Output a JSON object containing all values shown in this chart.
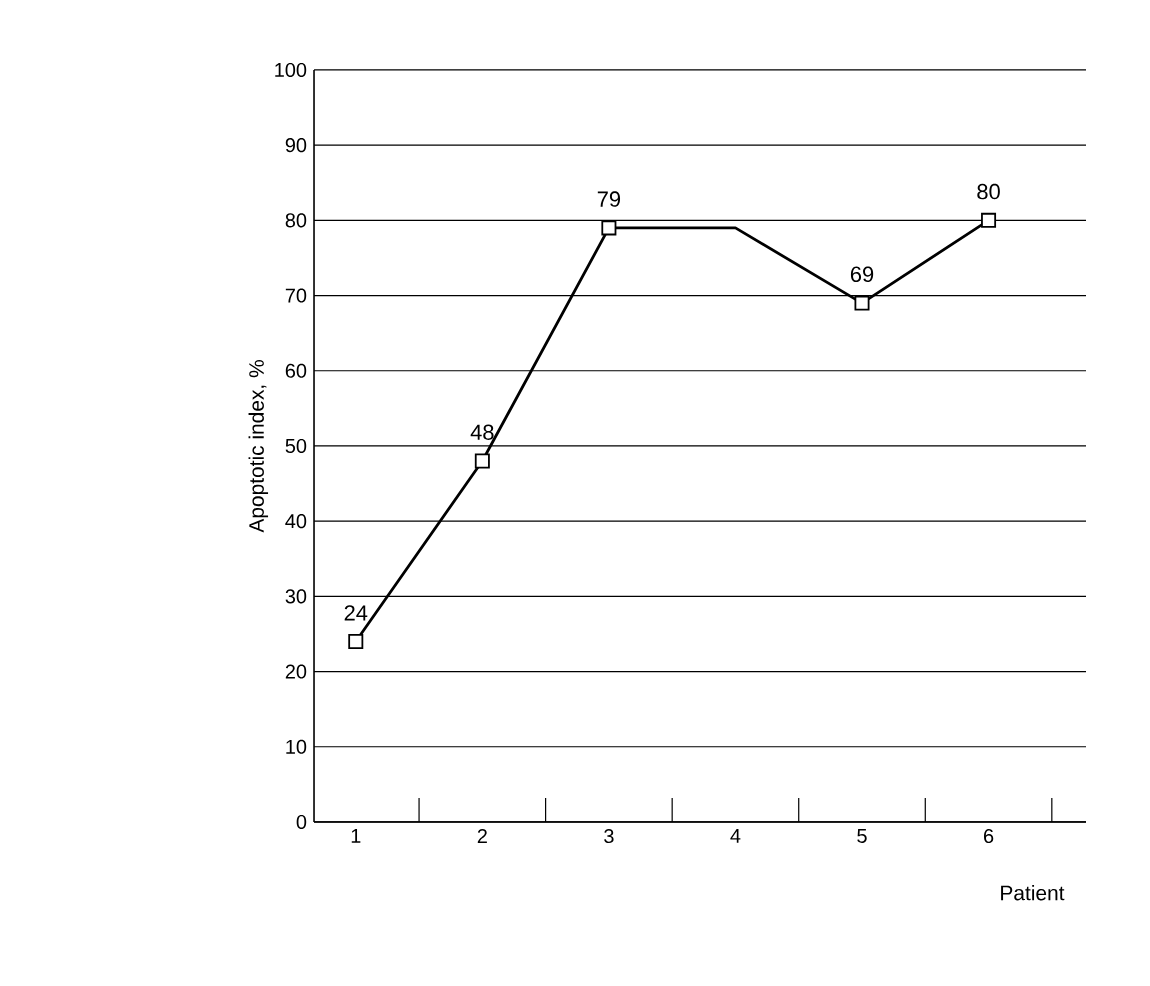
{
  "chart_data": {
    "type": "line",
    "xlabel": "Patient",
    "ylabel": "Apoptotic index, %",
    "categories": [
      "1",
      "2",
      "3",
      "4",
      "5",
      "6"
    ],
    "series": [
      {
        "color": "#000000",
        "marker": "none",
        "line_style": "solid",
        "values": [
          24,
          48,
          79,
          79,
          69,
          80
        ]
      },
      {
        "type": "scatter",
        "color": "#000000",
        "marker": "square",
        "values": [
          24,
          48,
          79,
          null,
          69,
          80
        ],
        "value_labels": [
          "24",
          "48",
          "79",
          null,
          "69",
          "80"
        ]
      }
    ],
    "ylim": [
      0,
      100
    ],
    "yticks": [
      0,
      10,
      20,
      30,
      40,
      50,
      60,
      70,
      80,
      90,
      100
    ],
    "grid": "y"
  }
}
